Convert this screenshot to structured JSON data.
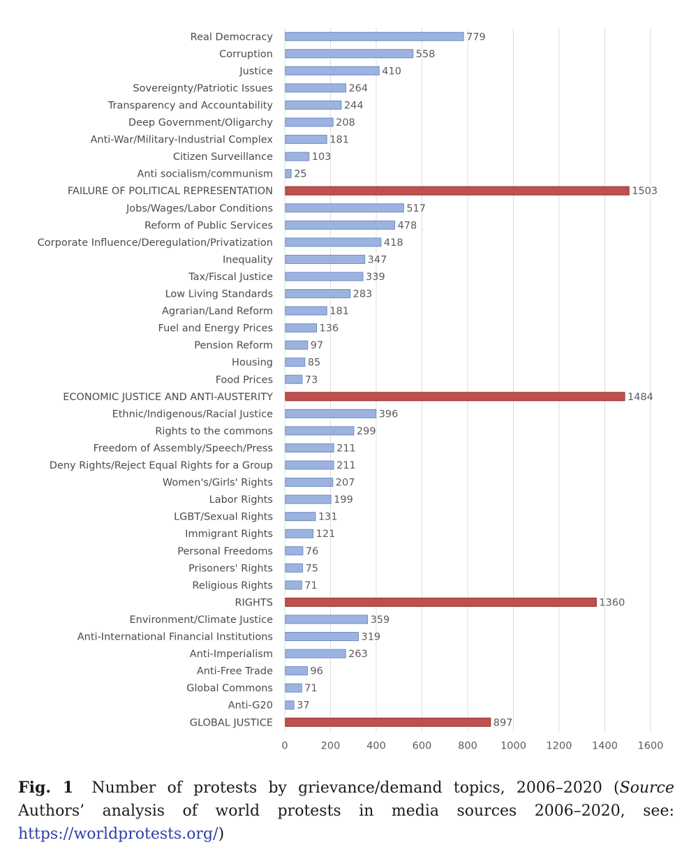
{
  "chart_data": {
    "type": "bar",
    "orientation": "horizontal",
    "categories": [
      "Real Democracy",
      "Corruption",
      "Justice",
      "Sovereignty/Patriotic Issues",
      "Transparency and Accountability",
      "Deep Government/Oligarchy",
      "Anti-War/Military-Industrial Complex",
      "Citizen Surveillance",
      "Anti socialism/communism",
      "FAILURE OF POLITICAL REPRESENTATION",
      "Jobs/Wages/Labor Conditions",
      "Reform of Public Services",
      "Corporate Influence/Deregulation/Privatization",
      "Inequality",
      "Tax/Fiscal Justice",
      "Low Living Standards",
      "Agrarian/Land Reform",
      "Fuel and Energy Prices",
      "Pension Reform",
      "Housing",
      "Food Prices",
      "ECONOMIC JUSTICE AND ANTI-AUSTERITY",
      "Ethnic/Indigenous/Racial Justice",
      "Rights to the commons",
      "Freedom of Assembly/Speech/Press",
      "Deny Rights/Reject Equal Rights for a Group",
      "Women's/Girls' Rights",
      "Labor Rights",
      "LGBT/Sexual Rights",
      "Immigrant Rights",
      "Personal Freedoms",
      "Prisoners' Rights",
      "Religious Rights",
      "RIGHTS",
      "Environment/Climate Justice",
      "Anti-International Financial Institutions",
      "Anti-Imperialism",
      "Anti-Free Trade",
      "Global Commons",
      "Anti-G20",
      "GLOBAL JUSTICE"
    ],
    "values": [
      779,
      558,
      410,
      264,
      244,
      208,
      181,
      103,
      25,
      1503,
      517,
      478,
      418,
      347,
      339,
      283,
      181,
      136,
      97,
      85,
      73,
      1484,
      396,
      299,
      211,
      211,
      207,
      199,
      131,
      121,
      76,
      75,
      71,
      1360,
      359,
      319,
      263,
      96,
      71,
      37,
      897
    ],
    "category_totals": [
      "FAILURE OF POLITICAL REPRESENTATION",
      "ECONOMIC JUSTICE AND ANTI-AUSTERITY",
      "RIGHTS",
      "GLOBAL JUSTICE"
    ],
    "xlim": [
      0,
      1600
    ],
    "xticks": [
      0,
      200,
      400,
      600,
      800,
      1000,
      1200,
      1400,
      1600
    ],
    "grid": true,
    "colors": {
      "bar": "#9db3df",
      "bar_border": "#6f8cc4",
      "total_bar": "#c0504d",
      "total_border": "#8f2f2d"
    }
  },
  "caption": {
    "fig_no": "Fig. 1",
    "text": "Number of protests by grievance/demand topics, 2006–2020 (",
    "source_label": "Source",
    "source_text": " Authors’ analysis of world protests in media sources 2006–2020, see: ",
    "link": "https://worldprotests.org/",
    "tail": ")"
  }
}
